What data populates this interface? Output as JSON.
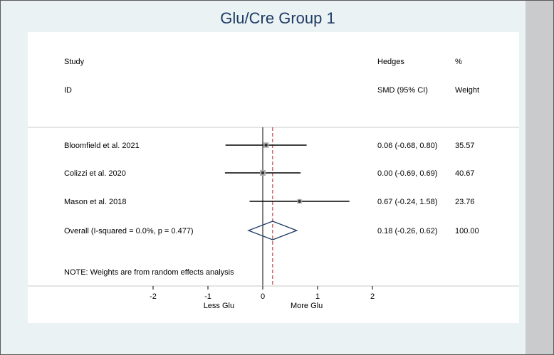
{
  "title": "Glu/Cre Group 1",
  "colors": {
    "ci_line": "#000000",
    "diamond": "#1e3b64",
    "overall_line": "#b22222"
  },
  "headers": {
    "study": "Study",
    "id": "ID",
    "hedges": "Hedges",
    "smd": "SMD (95% CI)",
    "pct": "%",
    "weight": "Weight"
  },
  "chart_data": {
    "type": "forest",
    "title": "Glu/Cre Group 1",
    "studies": [
      {
        "label": "Bloomfield et al. 2021",
        "smd": 0.06,
        "lo": -0.68,
        "hi": 0.8,
        "ci_text": "0.06 (-0.68, 0.80)",
        "weight": "35.57"
      },
      {
        "label": "Colizzi et al. 2020",
        "smd": 0.0,
        "lo": -0.69,
        "hi": 0.69,
        "ci_text": "0.00 (-0.69, 0.69)",
        "weight": "40.67"
      },
      {
        "label": "Mason et al. 2018",
        "smd": 0.67,
        "lo": -0.24,
        "hi": 1.58,
        "ci_text": "0.67 (-0.24, 1.58)",
        "weight": "23.76"
      }
    ],
    "overall": {
      "label": "Overall  (I-squared = 0.0%, p = 0.477)",
      "smd": 0.18,
      "lo": -0.26,
      "hi": 0.62,
      "ci_text": "0.18 (-0.26, 0.62)",
      "weight": "100.00"
    },
    "note": "NOTE: Weights are from random effects analysis",
    "x_ticks": [
      "-2",
      "-1",
      "0",
      "1",
      "2"
    ],
    "x_tick_values": [
      -2,
      -1,
      0,
      1,
      2
    ],
    "xlim": [
      -2,
      2
    ],
    "left_label": "Less Glu",
    "right_label": "More Glu"
  }
}
